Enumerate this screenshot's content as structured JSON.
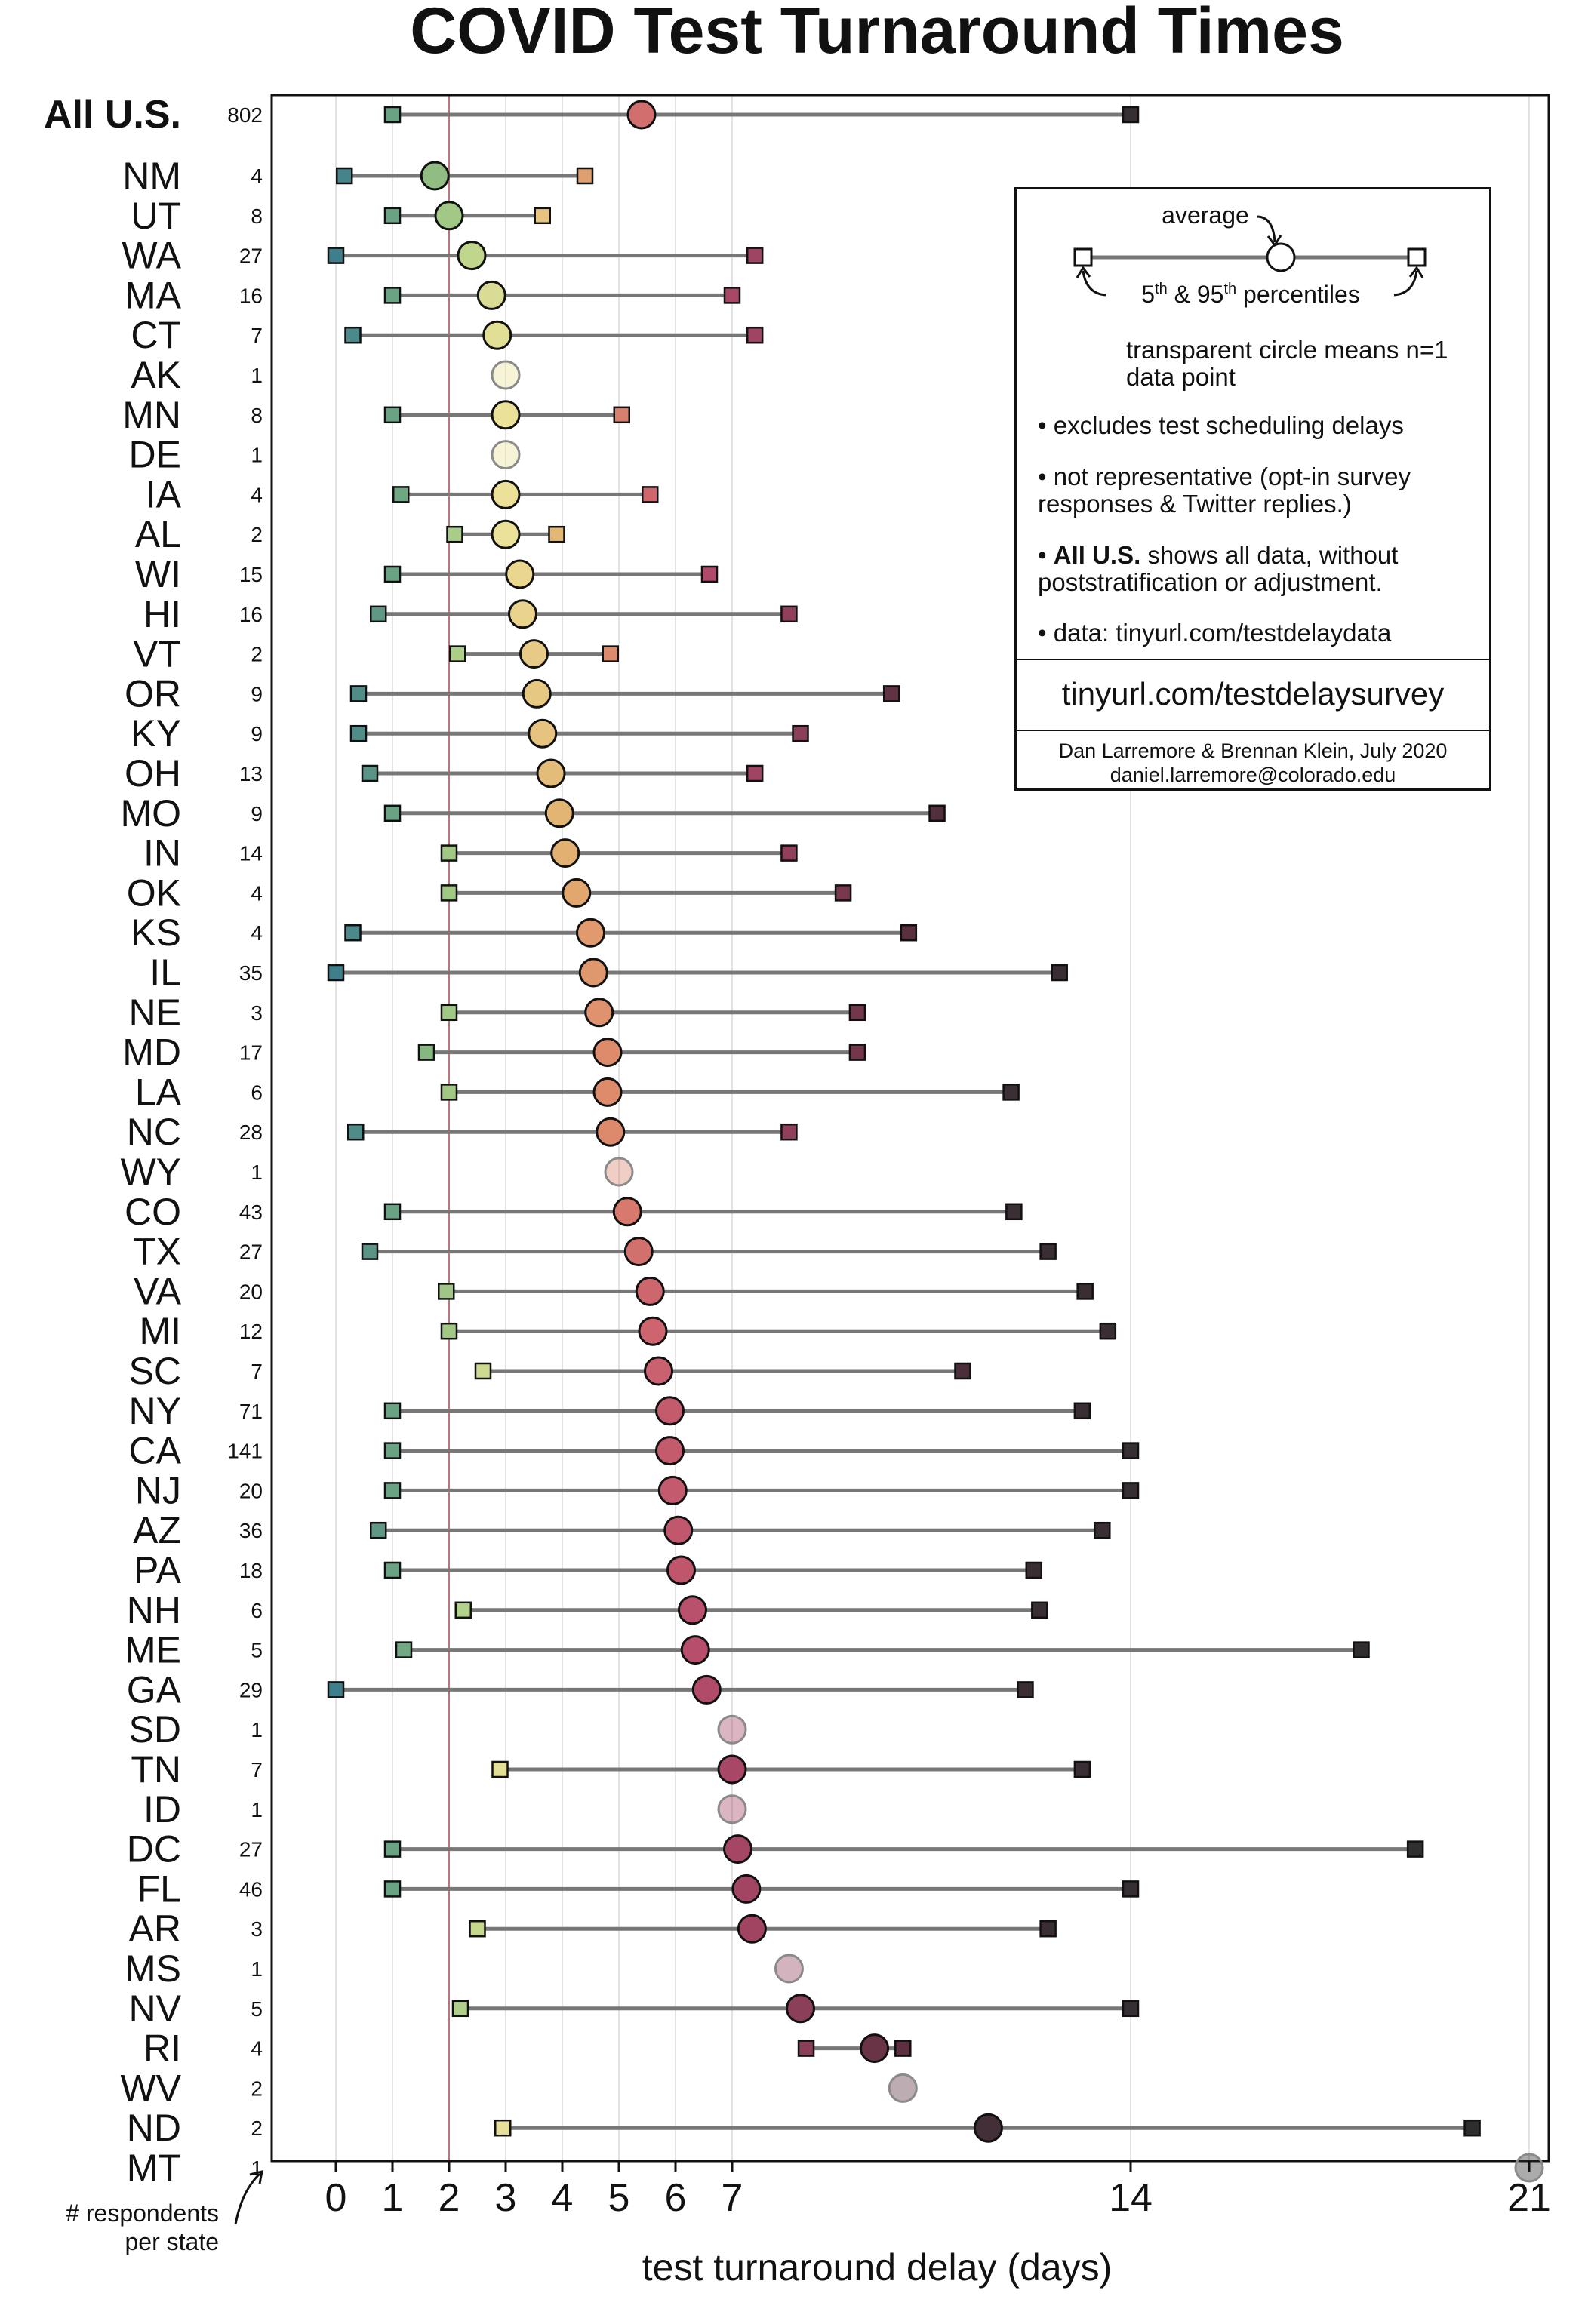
{
  "chart_data": {
    "type": "dumbbell",
    "title": "COVID Test Turnaround Times",
    "xlabel": "test turnaround delay (days)",
    "ylabel": "",
    "xticks": [
      0,
      1,
      2,
      3,
      4,
      5,
      6,
      7,
      14,
      21
    ],
    "xlim": [
      -1,
      21.5
    ],
    "reference_line_x": 2,
    "grid": "vertical",
    "count_column_label": "# respondents per state",
    "all_us": {
      "label": "All U.S.",
      "n": 802,
      "p5": 1,
      "avg": 5.4,
      "p95": 14
    },
    "states": [
      {
        "state": "NM",
        "n": 4,
        "p5": 0.15,
        "avg": 1.75,
        "p95": 4.4
      },
      {
        "state": "UT",
        "n": 8,
        "p5": 1,
        "avg": 2,
        "p95": 3.65
      },
      {
        "state": "WA",
        "n": 27,
        "p5": 0,
        "avg": 2.4,
        "p95": 7.4
      },
      {
        "state": "MA",
        "n": 16,
        "p5": 1,
        "avg": 2.75,
        "p95": 7
      },
      {
        "state": "CT",
        "n": 7,
        "p5": 0.3,
        "avg": 2.85,
        "p95": 7.4
      },
      {
        "state": "AK",
        "n": 1,
        "avg": 3
      },
      {
        "state": "MN",
        "n": 8,
        "p5": 1,
        "avg": 3,
        "p95": 5.05
      },
      {
        "state": "DE",
        "n": 1,
        "avg": 3
      },
      {
        "state": "IA",
        "n": 4,
        "p5": 1.15,
        "avg": 3,
        "p95": 5.55
      },
      {
        "state": "AL",
        "n": 2,
        "p5": 2.1,
        "avg": 3,
        "p95": 3.9
      },
      {
        "state": "WI",
        "n": 15,
        "p5": 1,
        "avg": 3.25,
        "p95": 6.6
      },
      {
        "state": "HI",
        "n": 16,
        "p5": 0.75,
        "avg": 3.3,
        "p95": 8
      },
      {
        "state": "VT",
        "n": 2,
        "p5": 2.15,
        "avg": 3.5,
        "p95": 4.85
      },
      {
        "state": "OR",
        "n": 9,
        "p5": 0.4,
        "avg": 3.55,
        "p95": 9.8
      },
      {
        "state": "KY",
        "n": 9,
        "p5": 0.4,
        "avg": 3.65,
        "p95": 8.2
      },
      {
        "state": "OH",
        "n": 13,
        "p5": 0.6,
        "avg": 3.8,
        "p95": 7.4
      },
      {
        "state": "MO",
        "n": 9,
        "p5": 1,
        "avg": 3.95,
        "p95": 10.6
      },
      {
        "state": "IN",
        "n": 14,
        "p5": 2,
        "avg": 4.05,
        "p95": 8
      },
      {
        "state": "OK",
        "n": 4,
        "p5": 2,
        "avg": 4.25,
        "p95": 8.95
      },
      {
        "state": "KS",
        "n": 4,
        "p5": 0.3,
        "avg": 4.5,
        "p95": 10.1
      },
      {
        "state": "IL",
        "n": 35,
        "p5": 0,
        "avg": 4.55,
        "p95": 12.75
      },
      {
        "state": "NE",
        "n": 3,
        "p5": 2,
        "avg": 4.65,
        "p95": 9.2
      },
      {
        "state": "MD",
        "n": 17,
        "p5": 1.6,
        "avg": 4.8,
        "p95": 9.2
      },
      {
        "state": "LA",
        "n": 6,
        "p5": 2,
        "avg": 4.8,
        "p95": 11.9
      },
      {
        "state": "NC",
        "n": 28,
        "p5": 0.35,
        "avg": 4.85,
        "p95": 8
      },
      {
        "state": "WY",
        "n": 1,
        "avg": 5
      },
      {
        "state": "CO",
        "n": 43,
        "p5": 1,
        "avg": 5.15,
        "p95": 11.95
      },
      {
        "state": "TX",
        "n": 27,
        "p5": 0.6,
        "avg": 5.35,
        "p95": 12.55
      },
      {
        "state": "VA",
        "n": 20,
        "p5": 1.95,
        "avg": 5.55,
        "p95": 13.2
      },
      {
        "state": "MI",
        "n": 12,
        "p5": 2,
        "avg": 5.6,
        "p95": 13.6
      },
      {
        "state": "SC",
        "n": 7,
        "p5": 2.6,
        "avg": 5.7,
        "p95": 11.05
      },
      {
        "state": "NY",
        "n": 71,
        "p5": 1,
        "avg": 5.9,
        "p95": 13.15
      },
      {
        "state": "CA",
        "n": 141,
        "p5": 1,
        "avg": 5.9,
        "p95": 14
      },
      {
        "state": "NJ",
        "n": 20,
        "p5": 1,
        "avg": 5.95,
        "p95": 14
      },
      {
        "state": "AZ",
        "n": 36,
        "p5": 0.75,
        "avg": 6.05,
        "p95": 13.5
      },
      {
        "state": "PA",
        "n": 18,
        "p5": 1,
        "avg": 6.1,
        "p95": 12.3
      },
      {
        "state": "NH",
        "n": 6,
        "p5": 2.25,
        "avg": 6.3,
        "p95": 12.4
      },
      {
        "state": "ME",
        "n": 5,
        "p5": 1.2,
        "avg": 6.35,
        "p95": 18.05
      },
      {
        "state": "GA",
        "n": 29,
        "p5": 0,
        "avg": 6.55,
        "p95": 12.15
      },
      {
        "state": "SD",
        "n": 1,
        "avg": 7
      },
      {
        "state": "TN",
        "n": 7,
        "p5": 2.9,
        "avg": 7,
        "p95": 13.15
      },
      {
        "state": "ID",
        "n": 1,
        "avg": 7
      },
      {
        "state": "DC",
        "n": 27,
        "p5": 1,
        "avg": 7.1,
        "p95": 19
      },
      {
        "state": "FL",
        "n": 46,
        "p5": 1,
        "avg": 7.25,
        "p95": 14
      },
      {
        "state": "AR",
        "n": 3,
        "p5": 2.5,
        "avg": 7.35,
        "p95": 12.55
      },
      {
        "state": "MS",
        "n": 1,
        "avg": 8
      },
      {
        "state": "NV",
        "n": 5,
        "p5": 2.2,
        "avg": 8.2,
        "p95": 14
      },
      {
        "state": "RI",
        "n": 4,
        "p5": 8.3,
        "avg": 9.5,
        "p95": 10
      },
      {
        "state": "WV",
        "n": 2,
        "avg": 10
      },
      {
        "state": "ND",
        "n": 2,
        "p5": 2.95,
        "avg": 11.5,
        "p95": 20
      },
      {
        "state": "MT",
        "n": 1,
        "avg": 21
      }
    ]
  },
  "legend": {
    "average_label": "average",
    "percentiles_label": "5th & 95th percentiles",
    "transparent_note": "transparent circle means n=1 data point",
    "bullets": [
      "• excludes test scheduling delays",
      "• not representative (opt-in survey responses & Twitter replies.)",
      "• All U.S. shows all data, without poststratification or adjustment.",
      "• data: tinyurl.com/testdelaydata"
    ],
    "survey_link": "tinyurl.com/testdelaysurvey",
    "credit": "Dan Larremore & Brennan Klein, July 2020",
    "email": "daniel.larremore@colorado.edu"
  }
}
